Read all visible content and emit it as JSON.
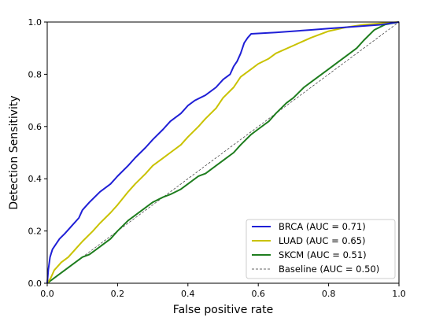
{
  "chart_data": {
    "type": "line",
    "xlabel": "False positive rate",
    "ylabel": "Detection Sensitivity",
    "xlim": [
      0.0,
      1.0
    ],
    "ylim": [
      0.0,
      1.0
    ],
    "x_ticks": [
      "0.0",
      "0.2",
      "0.4",
      "0.6",
      "0.8",
      "1.0"
    ],
    "y_ticks": [
      "0.0",
      "0.2",
      "0.4",
      "0.6",
      "0.8",
      "1.0"
    ],
    "grid": false,
    "legend_position": "lower-right",
    "series": [
      {
        "name": "BRCA (AUC = 0.71)",
        "color": "#1f1fd6",
        "style": "solid",
        "x": [
          0.0,
          0.003,
          0.008,
          0.015,
          0.025,
          0.035,
          0.05,
          0.07,
          0.09,
          0.1,
          0.12,
          0.15,
          0.18,
          0.2,
          0.23,
          0.25,
          0.28,
          0.3,
          0.33,
          0.35,
          0.38,
          0.4,
          0.42,
          0.45,
          0.48,
          0.5,
          0.52,
          0.53,
          0.54,
          0.55,
          0.56,
          0.57,
          0.58,
          0.65,
          0.75,
          0.8,
          0.85,
          0.9,
          0.95,
          1.0
        ],
        "y": [
          0.0,
          0.05,
          0.1,
          0.13,
          0.15,
          0.17,
          0.19,
          0.22,
          0.25,
          0.28,
          0.31,
          0.35,
          0.38,
          0.41,
          0.45,
          0.48,
          0.52,
          0.55,
          0.59,
          0.62,
          0.65,
          0.68,
          0.7,
          0.72,
          0.75,
          0.78,
          0.8,
          0.83,
          0.85,
          0.88,
          0.92,
          0.94,
          0.955,
          0.96,
          0.97,
          0.975,
          0.98,
          0.985,
          0.99,
          1.0
        ]
      },
      {
        "name": "LUAD (AUC = 0.65)",
        "color": "#c9c200",
        "style": "solid",
        "x": [
          0.0,
          0.01,
          0.02,
          0.04,
          0.06,
          0.08,
          0.1,
          0.13,
          0.15,
          0.18,
          0.2,
          0.23,
          0.25,
          0.28,
          0.3,
          0.33,
          0.35,
          0.38,
          0.4,
          0.43,
          0.45,
          0.48,
          0.5,
          0.53,
          0.55,
          0.58,
          0.6,
          0.63,
          0.65,
          0.7,
          0.75,
          0.8,
          0.85,
          0.9,
          0.95,
          1.0
        ],
        "y": [
          0.0,
          0.02,
          0.05,
          0.08,
          0.1,
          0.13,
          0.16,
          0.2,
          0.23,
          0.27,
          0.3,
          0.35,
          0.38,
          0.42,
          0.45,
          0.48,
          0.5,
          0.53,
          0.56,
          0.6,
          0.63,
          0.67,
          0.71,
          0.75,
          0.79,
          0.82,
          0.84,
          0.86,
          0.88,
          0.91,
          0.94,
          0.965,
          0.98,
          0.99,
          0.995,
          1.0
        ]
      },
      {
        "name": "SKCM (AUC = 0.51)",
        "color": "#1e7d1e",
        "style": "solid",
        "x": [
          0.0,
          0.02,
          0.04,
          0.06,
          0.08,
          0.1,
          0.12,
          0.15,
          0.18,
          0.2,
          0.23,
          0.25,
          0.28,
          0.3,
          0.33,
          0.35,
          0.38,
          0.4,
          0.43,
          0.45,
          0.48,
          0.5,
          0.53,
          0.55,
          0.58,
          0.6,
          0.63,
          0.65,
          0.68,
          0.7,
          0.73,
          0.75,
          0.78,
          0.8,
          0.83,
          0.85,
          0.88,
          0.9,
          0.93,
          0.96,
          1.0
        ],
        "y": [
          0.0,
          0.02,
          0.04,
          0.06,
          0.08,
          0.1,
          0.11,
          0.14,
          0.17,
          0.2,
          0.24,
          0.26,
          0.29,
          0.31,
          0.33,
          0.34,
          0.36,
          0.38,
          0.41,
          0.42,
          0.45,
          0.47,
          0.5,
          0.53,
          0.57,
          0.59,
          0.62,
          0.65,
          0.69,
          0.71,
          0.75,
          0.77,
          0.8,
          0.82,
          0.85,
          0.87,
          0.9,
          0.93,
          0.97,
          0.99,
          1.0
        ]
      },
      {
        "name": "Baseline (AUC = 0.50)",
        "color": "#333333",
        "style": "dashed",
        "x": [
          0.0,
          1.0
        ],
        "y": [
          0.0,
          1.0
        ]
      }
    ]
  }
}
